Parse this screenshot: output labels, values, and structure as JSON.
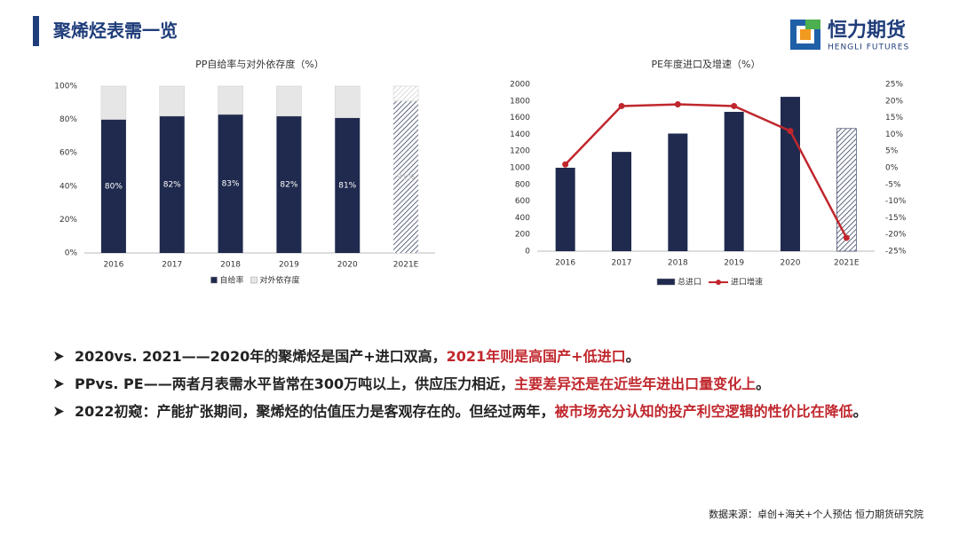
{
  "header": {
    "title": "聚烯烃表需一览",
    "logo_cn": "恒力期货",
    "logo_en": "HENGLI FUTURES"
  },
  "chart_data": [
    {
      "type": "stacked_bar",
      "title": "PP自给率与对外依存度（%）",
      "categories": [
        "2016",
        "2017",
        "2018",
        "2019",
        "2020",
        "2021E"
      ],
      "series": [
        {
          "name": "自给率",
          "color": "#1f2a4e",
          "values": [
            80,
            82,
            83,
            82,
            81,
            91
          ],
          "value_labels": [
            "80%",
            "82%",
            "83%",
            "82%",
            "81%",
            "91%"
          ]
        },
        {
          "name": "对外依存度",
          "color": "#e6e6e6",
          "values": [
            20,
            18,
            17,
            18,
            19,
            9
          ]
        }
      ],
      "hatched": [
        false,
        false,
        false,
        false,
        false,
        true
      ],
      "ylim": [
        0,
        100
      ],
      "yticks": [
        {
          "value": 0,
          "label": "0%"
        },
        {
          "value": 20,
          "label": "20%"
        },
        {
          "value": 40,
          "label": "40%"
        },
        {
          "value": 60,
          "label": "60%"
        },
        {
          "value": 80,
          "label": "80%"
        },
        {
          "value": 100,
          "label": "100%"
        }
      ],
      "grid": false,
      "legend": "bottom"
    },
    {
      "type": "bar_line",
      "title": "PE年度进口及增速（%）",
      "categories": [
        "2016",
        "2017",
        "2018",
        "2019",
        "2020",
        "2021E"
      ],
      "series": [
        {
          "name": "总进口",
          "color": "#1f2a4e",
          "values": [
            1000,
            1190,
            1410,
            1670,
            1850,
            1470
          ]
        },
        {
          "name": "进口增速",
          "color": "#c0272d",
          "values": [
            1,
            18.5,
            19,
            18.5,
            11,
            -21
          ],
          "axis": "y2"
        }
      ],
      "hatched": [
        false,
        false,
        false,
        false,
        false,
        true
      ],
      "ylim": [
        0,
        2000
      ],
      "yticks": [
        0,
        200,
        400,
        600,
        800,
        1000,
        1200,
        1400,
        1600,
        1800,
        2000
      ],
      "y2lim": [
        -25,
        25
      ],
      "y2ticks": [
        {
          "value": -25,
          "label": "-25%"
        },
        {
          "value": -20,
          "label": "-20%"
        },
        {
          "value": -15,
          "label": "-15%"
        },
        {
          "value": -10,
          "label": "-10%"
        },
        {
          "value": -5,
          "label": "-5%"
        },
        {
          "value": 0,
          "label": "0%"
        },
        {
          "value": 5,
          "label": "5%"
        },
        {
          "value": 10,
          "label": "10%"
        },
        {
          "value": 15,
          "label": "15%"
        },
        {
          "value": 20,
          "label": "20%"
        },
        {
          "value": 25,
          "label": "25%"
        }
      ],
      "grid": false,
      "legend": "bottom"
    }
  ],
  "bullets": [
    {
      "lead": "2020vs. 2021",
      "text": "——2020年的聚烯烃是国产+进口双高，",
      "highlight": "2021年则是高国产+低进口",
      "end": "。"
    },
    {
      "lead": "PPvs. PE",
      "text": "——两者月表需水平皆常在300万吨以上，供应压力相近，",
      "highlight": "主要差异还是在近些年进出口量变化上",
      "end": "。"
    },
    {
      "lead": "2022初窥",
      "text": "：产能扩张期间，聚烯烃的估值压力是客观存在的。但经过两年，",
      "highlight": "被市场充分认知的投产利空逻辑的性价比在降低",
      "end": "。"
    }
  ],
  "footer": {
    "source": "数据来源：卓创+海关+个人预估 恒力期货研究院"
  }
}
